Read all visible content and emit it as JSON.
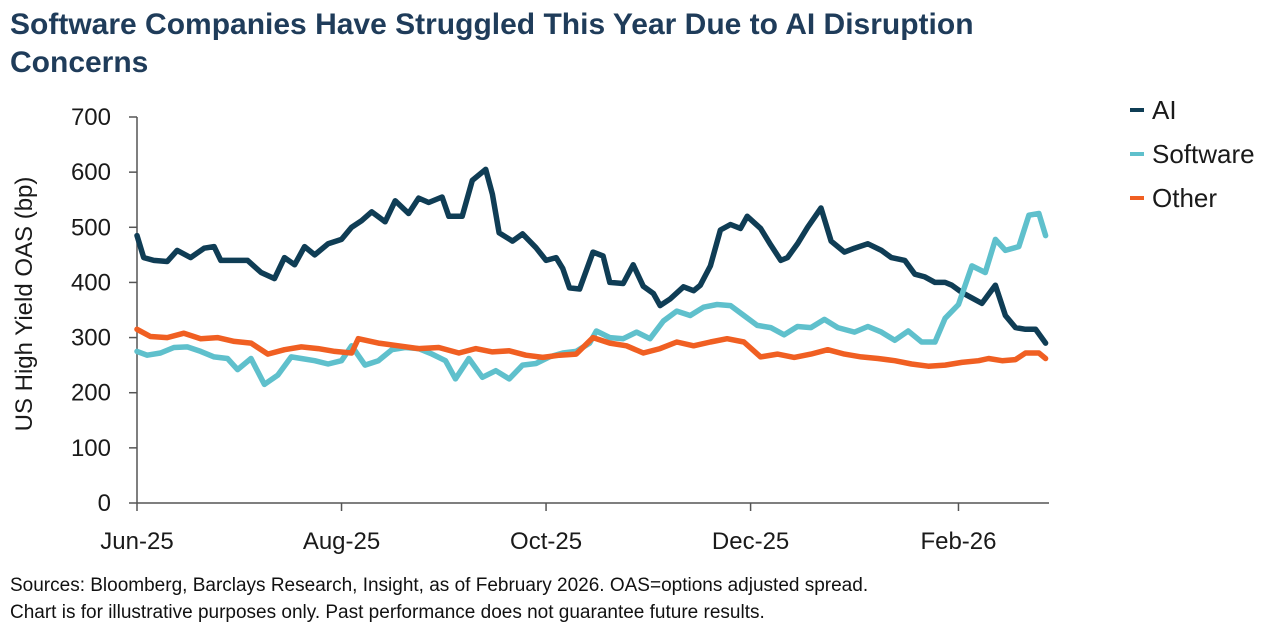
{
  "title": "Software Companies Have Struggled This Year Due to AI Disruption Concerns",
  "sources": [
    "Sources: Bloomberg, Barclays Research, Insight, as of February 2026. OAS=options adjusted spread.",
    "Chart is for illustrative purposes only. Past performance does not guarantee future results."
  ],
  "chart_data": {
    "type": "line",
    "title": "Software Companies Have Struggled This Year Due to AI Disruption Concerns",
    "ylabel": "US High Yield OAS (bp)",
    "xlabel": "",
    "ylim": [
      0,
      700
    ],
    "yticks": [
      0,
      100,
      200,
      300,
      400,
      500,
      600,
      700
    ],
    "x_range": [
      "2025-06-01",
      "2026-02-28"
    ],
    "xticks": [
      {
        "date": "2025-06-01",
        "label": "Jun-25"
      },
      {
        "date": "2025-08-01",
        "label": "Aug-25"
      },
      {
        "date": "2025-10-01",
        "label": "Oct-25"
      },
      {
        "date": "2025-12-01",
        "label": "Dec-25"
      },
      {
        "date": "2026-02-01",
        "label": "Feb-26"
      }
    ],
    "grid": false,
    "legend_position": "top-right",
    "series": [
      {
        "name": "AI",
        "color": "#0f3d55",
        "points": [
          [
            "2025-06-01",
            485
          ],
          [
            "2025-06-03",
            445
          ],
          [
            "2025-06-06",
            440
          ],
          [
            "2025-06-10",
            438
          ],
          [
            "2025-06-13",
            458
          ],
          [
            "2025-06-17",
            445
          ],
          [
            "2025-06-21",
            462
          ],
          [
            "2025-06-24",
            465
          ],
          [
            "2025-06-26",
            440
          ],
          [
            "2025-07-01",
            440
          ],
          [
            "2025-07-04",
            440
          ],
          [
            "2025-07-08",
            418
          ],
          [
            "2025-07-12",
            407
          ],
          [
            "2025-07-15",
            445
          ],
          [
            "2025-07-18",
            432
          ],
          [
            "2025-07-21",
            465
          ],
          [
            "2025-07-24",
            450
          ],
          [
            "2025-07-28",
            470
          ],
          [
            "2025-08-01",
            478
          ],
          [
            "2025-08-04",
            500
          ],
          [
            "2025-08-07",
            512
          ],
          [
            "2025-08-10",
            528
          ],
          [
            "2025-08-14",
            510
          ],
          [
            "2025-08-17",
            548
          ],
          [
            "2025-08-21",
            525
          ],
          [
            "2025-08-24",
            553
          ],
          [
            "2025-08-27",
            545
          ],
          [
            "2025-08-31",
            555
          ],
          [
            "2025-09-02",
            520
          ],
          [
            "2025-09-06",
            520
          ],
          [
            "2025-09-09",
            585
          ],
          [
            "2025-09-13",
            605
          ],
          [
            "2025-09-15",
            560
          ],
          [
            "2025-09-17",
            490
          ],
          [
            "2025-09-21",
            475
          ],
          [
            "2025-09-24",
            488
          ],
          [
            "2025-09-28",
            463
          ],
          [
            "2025-10-01",
            440
          ],
          [
            "2025-10-04",
            445
          ],
          [
            "2025-10-06",
            425
          ],
          [
            "2025-10-08",
            390
          ],
          [
            "2025-10-11",
            388
          ],
          [
            "2025-10-15",
            455
          ],
          [
            "2025-10-18",
            448
          ],
          [
            "2025-10-20",
            400
          ],
          [
            "2025-10-24",
            398
          ],
          [
            "2025-10-27",
            432
          ],
          [
            "2025-10-30",
            393
          ],
          [
            "2025-11-02",
            380
          ],
          [
            "2025-11-04",
            358
          ],
          [
            "2025-11-07",
            370
          ],
          [
            "2025-11-11",
            392
          ],
          [
            "2025-11-14",
            385
          ],
          [
            "2025-11-16",
            395
          ],
          [
            "2025-11-19",
            430
          ],
          [
            "2025-11-22",
            495
          ],
          [
            "2025-11-25",
            505
          ],
          [
            "2025-11-28",
            498
          ],
          [
            "2025-11-30",
            520
          ],
          [
            "2025-12-04",
            498
          ],
          [
            "2025-12-07",
            468
          ],
          [
            "2025-12-10",
            440
          ],
          [
            "2025-12-12",
            445
          ],
          [
            "2025-12-15",
            470
          ],
          [
            "2025-12-18",
            500
          ],
          [
            "2025-12-22",
            535
          ],
          [
            "2025-12-25",
            475
          ],
          [
            "2025-12-29",
            455
          ],
          [
            "2026-01-01",
            462
          ],
          [
            "2026-01-05",
            470
          ],
          [
            "2026-01-09",
            458
          ],
          [
            "2026-01-12",
            445
          ],
          [
            "2026-01-16",
            440
          ],
          [
            "2026-01-19",
            415
          ],
          [
            "2026-01-22",
            410
          ],
          [
            "2026-01-25",
            400
          ],
          [
            "2026-01-28",
            400
          ],
          [
            "2026-01-30",
            395
          ],
          [
            "2026-02-02",
            382
          ],
          [
            "2026-02-05",
            372
          ],
          [
            "2026-02-08",
            362
          ],
          [
            "2026-02-12",
            395
          ],
          [
            "2026-02-15",
            340
          ],
          [
            "2026-02-18",
            318
          ],
          [
            "2026-02-21",
            315
          ],
          [
            "2026-02-24",
            315
          ],
          [
            "2026-02-27",
            290
          ]
        ]
      },
      {
        "name": "Software",
        "color": "#5fc0cc",
        "points": [
          [
            "2025-06-01",
            275
          ],
          [
            "2025-06-04",
            268
          ],
          [
            "2025-06-08",
            272
          ],
          [
            "2025-06-12",
            282
          ],
          [
            "2025-06-16",
            283
          ],
          [
            "2025-06-20",
            275
          ],
          [
            "2025-06-24",
            265
          ],
          [
            "2025-06-28",
            262
          ],
          [
            "2025-07-01",
            242
          ],
          [
            "2025-07-05",
            262
          ],
          [
            "2025-07-09",
            215
          ],
          [
            "2025-07-13",
            232
          ],
          [
            "2025-07-17",
            265
          ],
          [
            "2025-07-20",
            262
          ],
          [
            "2025-07-24",
            258
          ],
          [
            "2025-07-28",
            252
          ],
          [
            "2025-08-01",
            258
          ],
          [
            "2025-08-04",
            285
          ],
          [
            "2025-08-08",
            250
          ],
          [
            "2025-08-12",
            258
          ],
          [
            "2025-08-16",
            278
          ],
          [
            "2025-08-20",
            282
          ],
          [
            "2025-08-24",
            280
          ],
          [
            "2025-08-28",
            270
          ],
          [
            "2025-09-01",
            258
          ],
          [
            "2025-09-04",
            225
          ],
          [
            "2025-09-08",
            262
          ],
          [
            "2025-09-12",
            228
          ],
          [
            "2025-09-16",
            240
          ],
          [
            "2025-09-20",
            225
          ],
          [
            "2025-09-24",
            250
          ],
          [
            "2025-09-28",
            253
          ],
          [
            "2025-10-02",
            265
          ],
          [
            "2025-10-06",
            272
          ],
          [
            "2025-10-10",
            275
          ],
          [
            "2025-10-14",
            290
          ],
          [
            "2025-10-16",
            312
          ],
          [
            "2025-10-20",
            300
          ],
          [
            "2025-10-24",
            298
          ],
          [
            "2025-10-28",
            310
          ],
          [
            "2025-11-01",
            298
          ],
          [
            "2025-11-05",
            330
          ],
          [
            "2025-11-09",
            348
          ],
          [
            "2025-11-13",
            340
          ],
          [
            "2025-11-17",
            355
          ],
          [
            "2025-11-21",
            360
          ],
          [
            "2025-11-25",
            358
          ],
          [
            "2025-11-29",
            340
          ],
          [
            "2025-12-03",
            322
          ],
          [
            "2025-12-07",
            318
          ],
          [
            "2025-12-11",
            305
          ],
          [
            "2025-12-15",
            320
          ],
          [
            "2025-12-19",
            318
          ],
          [
            "2025-12-23",
            333
          ],
          [
            "2025-12-27",
            318
          ],
          [
            "2026-01-01",
            310
          ],
          [
            "2026-01-05",
            320
          ],
          [
            "2026-01-09",
            310
          ],
          [
            "2026-01-13",
            295
          ],
          [
            "2026-01-17",
            312
          ],
          [
            "2026-01-21",
            292
          ],
          [
            "2026-01-25",
            292
          ],
          [
            "2026-01-28",
            335
          ],
          [
            "2026-02-01",
            360
          ],
          [
            "2026-02-05",
            430
          ],
          [
            "2026-02-09",
            418
          ],
          [
            "2026-02-12",
            478
          ],
          [
            "2026-02-15",
            458
          ],
          [
            "2026-02-19",
            465
          ],
          [
            "2026-02-22",
            522
          ],
          [
            "2026-02-25",
            525
          ],
          [
            "2026-02-27",
            485
          ]
        ]
      },
      {
        "name": "Other",
        "color": "#f05f22",
        "points": [
          [
            "2025-06-01",
            315
          ],
          [
            "2025-06-05",
            302
          ],
          [
            "2025-06-10",
            300
          ],
          [
            "2025-06-15",
            308
          ],
          [
            "2025-06-20",
            298
          ],
          [
            "2025-06-25",
            300
          ],
          [
            "2025-06-30",
            293
          ],
          [
            "2025-07-05",
            290
          ],
          [
            "2025-07-10",
            270
          ],
          [
            "2025-07-15",
            278
          ],
          [
            "2025-07-20",
            283
          ],
          [
            "2025-07-25",
            280
          ],
          [
            "2025-07-30",
            275
          ],
          [
            "2025-08-04",
            272
          ],
          [
            "2025-08-06",
            298
          ],
          [
            "2025-08-12",
            290
          ],
          [
            "2025-08-18",
            285
          ],
          [
            "2025-08-24",
            280
          ],
          [
            "2025-08-30",
            282
          ],
          [
            "2025-09-05",
            272
          ],
          [
            "2025-09-10",
            280
          ],
          [
            "2025-09-15",
            274
          ],
          [
            "2025-09-20",
            276
          ],
          [
            "2025-09-25",
            268
          ],
          [
            "2025-09-30",
            264
          ],
          [
            "2025-10-05",
            268
          ],
          [
            "2025-10-10",
            270
          ],
          [
            "2025-10-15",
            300
          ],
          [
            "2025-10-20",
            290
          ],
          [
            "2025-10-25",
            285
          ],
          [
            "2025-10-30",
            272
          ],
          [
            "2025-11-04",
            280
          ],
          [
            "2025-11-09",
            292
          ],
          [
            "2025-11-14",
            285
          ],
          [
            "2025-11-19",
            292
          ],
          [
            "2025-11-24",
            298
          ],
          [
            "2025-11-29",
            292
          ],
          [
            "2025-12-04",
            265
          ],
          [
            "2025-12-09",
            270
          ],
          [
            "2025-12-14",
            264
          ],
          [
            "2025-12-19",
            270
          ],
          [
            "2025-12-24",
            278
          ],
          [
            "2025-12-29",
            270
          ],
          [
            "2026-01-03",
            265
          ],
          [
            "2026-01-08",
            262
          ],
          [
            "2026-01-13",
            258
          ],
          [
            "2026-01-18",
            252
          ],
          [
            "2026-01-23",
            248
          ],
          [
            "2026-01-28",
            250
          ],
          [
            "2026-02-02",
            255
          ],
          [
            "2026-02-07",
            258
          ],
          [
            "2026-02-10",
            262
          ],
          [
            "2026-02-14",
            258
          ],
          [
            "2026-02-18",
            260
          ],
          [
            "2026-02-21",
            272
          ],
          [
            "2026-02-25",
            272
          ],
          [
            "2026-02-27",
            262
          ]
        ]
      }
    ]
  }
}
